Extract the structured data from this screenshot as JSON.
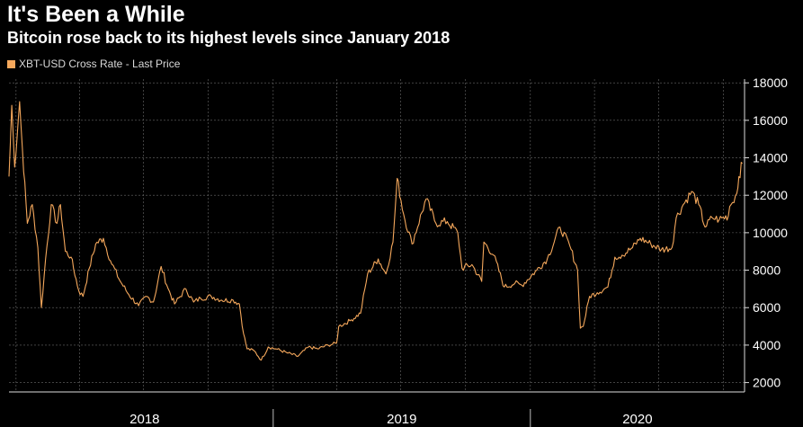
{
  "title": "It's Been a While",
  "subtitle": "Bitcoin rose back to its highest levels since January 2018",
  "chart_data": {
    "type": "line",
    "title": "It's Been a While",
    "subtitle": "Bitcoin rose back to its highest levels since January 2018",
    "xlabel": "",
    "ylabel": "",
    "ylim": [
      1500,
      18200
    ],
    "xlim": [
      "2017-12-22",
      "2020-10-31"
    ],
    "x_tick_labels": [
      "2018",
      "2019",
      "2020"
    ],
    "y_ticks": [
      2000,
      4000,
      6000,
      8000,
      10000,
      12000,
      14000,
      16000,
      18000
    ],
    "y_tick_labels": [
      "2000",
      "4000",
      "6000",
      "8000",
      "10000",
      "12000",
      "14000",
      "16000",
      "18000"
    ],
    "grid": true,
    "legend_position": "top-left",
    "series": [
      {
        "name": "XBT-USD Cross Rate - Last Price",
        "color": "#f5a85c",
        "points": [
          [
            "2017-12-22",
            13000
          ],
          [
            "2017-12-26",
            16800
          ],
          [
            "2017-12-30",
            13500
          ],
          [
            "2018-01-06",
            17000
          ],
          [
            "2018-01-10",
            14500
          ],
          [
            "2018-01-17",
            10500
          ],
          [
            "2018-01-24",
            11500
          ],
          [
            "2018-02-01",
            9200
          ],
          [
            "2018-02-06",
            6000
          ],
          [
            "2018-02-12",
            8600
          ],
          [
            "2018-02-20",
            11500
          ],
          [
            "2018-02-28",
            10500
          ],
          [
            "2018-03-05",
            11500
          ],
          [
            "2018-03-12",
            9000
          ],
          [
            "2018-03-20",
            8700
          ],
          [
            "2018-03-31",
            6900
          ],
          [
            "2018-04-06",
            6600
          ],
          [
            "2018-04-15",
            8100
          ],
          [
            "2018-04-24",
            9400
          ],
          [
            "2018-05-05",
            9700
          ],
          [
            "2018-05-15",
            8500
          ],
          [
            "2018-05-29",
            7400
          ],
          [
            "2018-06-10",
            6700
          ],
          [
            "2018-06-24",
            6100
          ],
          [
            "2018-07-05",
            6600
          ],
          [
            "2018-07-15",
            6300
          ],
          [
            "2018-07-26",
            8200
          ],
          [
            "2018-08-05",
            7000
          ],
          [
            "2018-08-14",
            6200
          ],
          [
            "2018-08-30",
            7000
          ],
          [
            "2018-09-10",
            6300
          ],
          [
            "2018-09-20",
            6500
          ],
          [
            "2018-10-05",
            6600
          ],
          [
            "2018-10-20",
            6400
          ],
          [
            "2018-11-05",
            6400
          ],
          [
            "2018-11-14",
            6200
          ],
          [
            "2018-11-20",
            4600
          ],
          [
            "2018-11-25",
            3800
          ],
          [
            "2018-12-05",
            3700
          ],
          [
            "2018-12-15",
            3200
          ],
          [
            "2018-12-25",
            3900
          ],
          [
            "2019-01-05",
            3800
          ],
          [
            "2019-01-20",
            3600
          ],
          [
            "2019-02-05",
            3400
          ],
          [
            "2019-02-20",
            3900
          ],
          [
            "2019-03-05",
            3800
          ],
          [
            "2019-03-20",
            4000
          ],
          [
            "2019-04-01",
            4100
          ],
          [
            "2019-04-04",
            5000
          ],
          [
            "2019-04-20",
            5300
          ],
          [
            "2019-05-05",
            5700
          ],
          [
            "2019-05-15",
            7800
          ],
          [
            "2019-05-30",
            8600
          ],
          [
            "2019-06-10",
            7800
          ],
          [
            "2019-06-20",
            9500
          ],
          [
            "2019-06-26",
            12900
          ],
          [
            "2019-07-05",
            11000
          ],
          [
            "2019-07-17",
            9400
          ],
          [
            "2019-08-06",
            11800
          ],
          [
            "2019-08-20",
            10500
          ],
          [
            "2019-09-05",
            10600
          ],
          [
            "2019-09-20",
            10000
          ],
          [
            "2019-09-26",
            8100
          ],
          [
            "2019-10-10",
            8300
          ],
          [
            "2019-10-24",
            7400
          ],
          [
            "2019-10-27",
            9500
          ],
          [
            "2019-11-10",
            8800
          ],
          [
            "2019-11-25",
            7100
          ],
          [
            "2019-12-10",
            7300
          ],
          [
            "2019-12-20",
            7200
          ],
          [
            "2020-01-10",
            8000
          ],
          [
            "2020-01-25",
            8600
          ],
          [
            "2020-02-12",
            10300
          ],
          [
            "2020-02-26",
            9300
          ],
          [
            "2020-03-08",
            8000
          ],
          [
            "2020-03-12",
            4900
          ],
          [
            "2020-03-16",
            5000
          ],
          [
            "2020-03-25",
            6600
          ],
          [
            "2020-04-05",
            6800
          ],
          [
            "2020-04-20",
            7100
          ],
          [
            "2020-04-30",
            8700
          ],
          [
            "2020-05-10",
            8800
          ],
          [
            "2020-05-25",
            9200
          ],
          [
            "2020-06-05",
            9700
          ],
          [
            "2020-06-20",
            9400
          ],
          [
            "2020-07-05",
            9100
          ],
          [
            "2020-07-20",
            9200
          ],
          [
            "2020-07-26",
            10800
          ],
          [
            "2020-08-05",
            11500
          ],
          [
            "2020-08-17",
            12200
          ],
          [
            "2020-08-27",
            11500
          ],
          [
            "2020-09-05",
            10300
          ],
          [
            "2020-09-15",
            10800
          ],
          [
            "2020-09-25",
            10700
          ],
          [
            "2020-10-08",
            10900
          ],
          [
            "2020-10-10",
            11400
          ],
          [
            "2020-10-20",
            12100
          ],
          [
            "2020-10-23",
            13000
          ],
          [
            "2020-10-28",
            13700
          ]
        ]
      }
    ]
  }
}
